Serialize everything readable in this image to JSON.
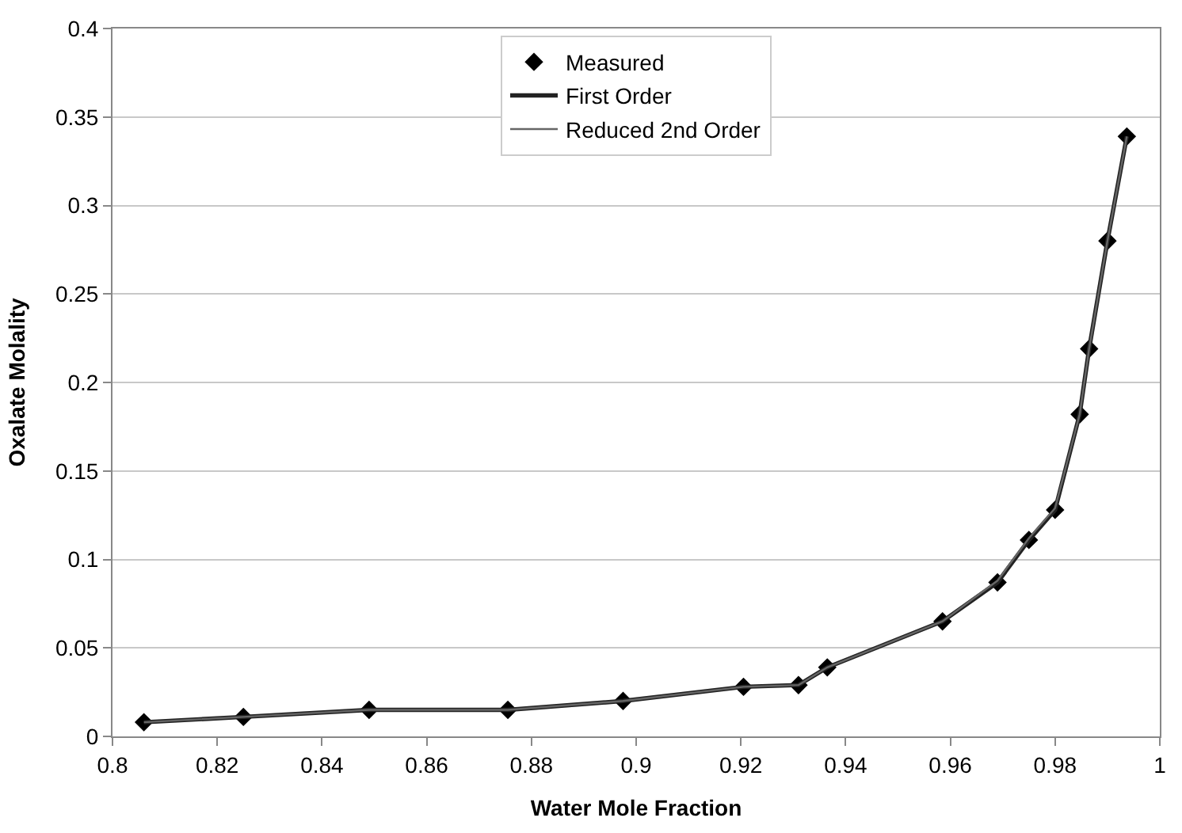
{
  "chart_data": {
    "type": "scatter",
    "xlabel": "Water Mole Fraction",
    "ylabel": "Oxalate Molality",
    "x": [
      0.806,
      0.825,
      0.849,
      0.8755,
      0.8975,
      0.9205,
      0.931,
      0.9365,
      0.9585,
      0.969,
      0.975,
      0.98,
      0.9847,
      0.9865,
      0.99,
      0.9937
    ],
    "series": [
      {
        "name": "Measured",
        "marker": "diamond",
        "color": "#000000",
        "values": [
          0.008,
          0.011,
          0.015,
          0.015,
          0.02,
          0.028,
          0.029,
          0.039,
          0.065,
          0.087,
          0.111,
          0.128,
          0.182,
          0.219,
          0.28,
          0.339
        ]
      },
      {
        "name": "First Order",
        "type": "line",
        "marker": "none",
        "line_style": "solid",
        "color": "#222222",
        "values": [
          0.008,
          0.011,
          0.015,
          0.015,
          0.02,
          0.028,
          0.029,
          0.039,
          0.065,
          0.087,
          0.111,
          0.128,
          0.182,
          0.219,
          0.28,
          0.339
        ]
      },
      {
        "name": "Reduced 2nd Order",
        "type": "line",
        "marker": "none",
        "line_style": "solid",
        "color": "#666666",
        "values": [
          0.008,
          0.011,
          0.015,
          0.015,
          0.02,
          0.028,
          0.029,
          0.039,
          0.065,
          0.088,
          0.112,
          0.129,
          0.182,
          0.219,
          0.28,
          0.339
        ]
      }
    ],
    "xlim": [
      0.8,
      1
    ],
    "xticks": [
      0.8,
      0.82,
      0.84,
      0.86,
      0.88,
      0.9,
      0.92,
      0.94,
      0.96,
      0.98,
      1
    ],
    "ylim": [
      0,
      0.4
    ],
    "yticks": [
      0,
      0.05,
      0.1,
      0.15,
      0.2,
      0.25,
      0.3,
      0.35,
      0.4
    ],
    "grid": "y",
    "legend": "top"
  }
}
